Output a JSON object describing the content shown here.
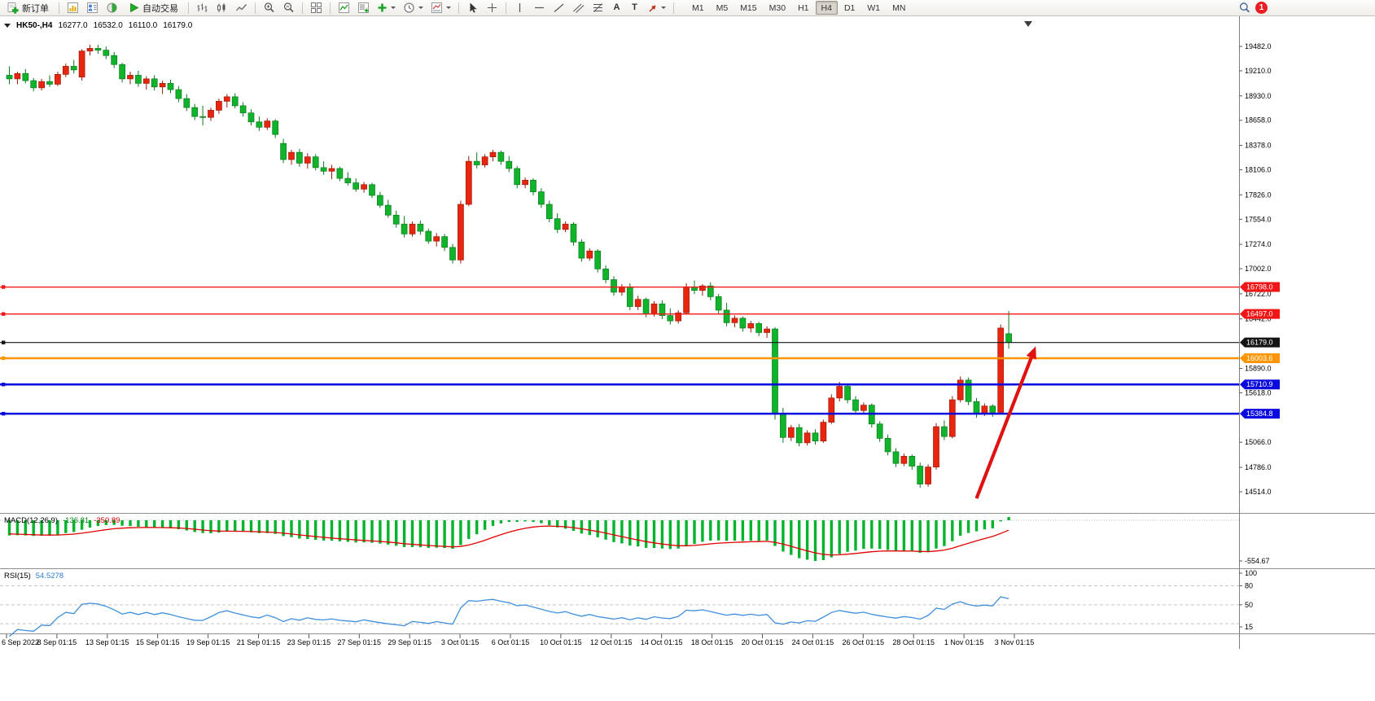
{
  "toolbar": {
    "new_order_label": "新订单",
    "auto_trading_label": "自动交易",
    "text_tool_label": "A",
    "label_tool_label": "T",
    "timeframes": [
      "M1",
      "M5",
      "M15",
      "M30",
      "H1",
      "H4",
      "D1",
      "W1",
      "MN"
    ],
    "active_timeframe": "H4",
    "notification_badge": "1"
  },
  "chart_header": {
    "symbol_period": "HK50-,H4",
    "open": "16277.0",
    "high": "16532.0",
    "low": "16110.0",
    "close": "16179.0"
  },
  "macd_panel": {
    "label": "MACD(12,26,9)",
    "main_value": "-136.81",
    "signal_value": "-350.89",
    "min_label": "-554.67"
  },
  "rsi_panel": {
    "label": "RSI(15)",
    "value": "54.5278",
    "axis_labels": [
      "100",
      "80",
      "50",
      "15"
    ],
    "levels": [
      80,
      50,
      20
    ]
  },
  "price_axis": {
    "labels": [
      "19482.0",
      "19210.0",
      "18930.0",
      "18658.0",
      "18378.0",
      "18106.0",
      "17826.0",
      "17554.0",
      "17274.0",
      "17002.0",
      "16722.0",
      "16442.0",
      "15890.0",
      "15618.0",
      "15066.0",
      "14786.0",
      "14514.0"
    ]
  },
  "time_axis": {
    "labels": [
      "6 Sep 2022",
      "8 Sep 01:15",
      "13 Sep 01:15",
      "15 Sep 01:15",
      "19 Sep 01:15",
      "21 Sep 01:15",
      "23 Sep 01:15",
      "27 Sep 01:15",
      "29 Sep 01:15",
      "3 Oct 01:15",
      "6 Oct 01:15",
      "10 Oct 01:15",
      "12 Oct 01:15",
      "14 Oct 01:15",
      "18 Oct 01:15",
      "20 Oct 01:15",
      "24 Oct 01:15",
      "26 Oct 01:15",
      "28 Oct 01:15",
      "1 Nov 01:15",
      "3 Nov 01:15"
    ]
  },
  "chart_data": {
    "type": "candlestick",
    "symbol": "HK50-",
    "period": "H4",
    "ohlc_current": {
      "open": 16277.0,
      "high": 16532.0,
      "low": 16110.0,
      "close": 16179.0
    },
    "up_color": "#e8250f",
    "down_color": "#0fb42a",
    "axis_top": 19482.0,
    "axis_bottom": 14514.0,
    "candles": [
      [
        19160,
        19260,
        19060,
        19120
      ],
      [
        19120,
        19200,
        19060,
        19180
      ],
      [
        19180,
        19230,
        19070,
        19100
      ],
      [
        19100,
        19130,
        18980,
        19020
      ],
      [
        19020,
        19120,
        18990,
        19090
      ],
      [
        19090,
        19160,
        19030,
        19060
      ],
      [
        19060,
        19200,
        19040,
        19170
      ],
      [
        19170,
        19290,
        19140,
        19260
      ],
      [
        19260,
        19330,
        19180,
        19220
      ],
      [
        19140,
        19450,
        19100,
        19430
      ],
      [
        19430,
        19500,
        19380,
        19460
      ],
      [
        19460,
        19500,
        19400,
        19440
      ],
      [
        19440,
        19480,
        19340,
        19380
      ],
      [
        19380,
        19420,
        19240,
        19280
      ],
      [
        19280,
        19300,
        19080,
        19120
      ],
      [
        19120,
        19200,
        19060,
        19160
      ],
      [
        19160,
        19210,
        19030,
        19070
      ],
      [
        19070,
        19150,
        19000,
        19120
      ],
      [
        19120,
        19160,
        18990,
        19030
      ],
      [
        19030,
        19100,
        18950,
        19070
      ],
      [
        19070,
        19110,
        18960,
        19000
      ],
      [
        19000,
        19040,
        18860,
        18900
      ],
      [
        18900,
        18950,
        18760,
        18800
      ],
      [
        18800,
        18840,
        18660,
        18700
      ],
      [
        18700,
        18820,
        18600,
        18690
      ],
      [
        18690,
        18800,
        18650,
        18770
      ],
      [
        18770,
        18900,
        18730,
        18870
      ],
      [
        18870,
        18950,
        18800,
        18920
      ],
      [
        18920,
        18960,
        18790,
        18820
      ],
      [
        18820,
        18860,
        18700,
        18740
      ],
      [
        18740,
        18780,
        18600,
        18640
      ],
      [
        18640,
        18700,
        18540,
        18580
      ],
      [
        18580,
        18680,
        18550,
        18650
      ],
      [
        18650,
        18670,
        18460,
        18500
      ],
      [
        18400,
        18450,
        18180,
        18220
      ],
      [
        18220,
        18330,
        18160,
        18300
      ],
      [
        18300,
        18340,
        18140,
        18180
      ],
      [
        18180,
        18290,
        18120,
        18250
      ],
      [
        18250,
        18280,
        18100,
        18130
      ],
      [
        18130,
        18200,
        18050,
        18090
      ],
      [
        18090,
        18160,
        18000,
        18120
      ],
      [
        18120,
        18140,
        17980,
        18010
      ],
      [
        18010,
        18080,
        17930,
        17960
      ],
      [
        17960,
        18010,
        17860,
        17890
      ],
      [
        17890,
        17970,
        17850,
        17940
      ],
      [
        17940,
        17960,
        17790,
        17820
      ],
      [
        17820,
        17860,
        17680,
        17710
      ],
      [
        17710,
        17770,
        17570,
        17600
      ],
      [
        17600,
        17650,
        17460,
        17500
      ],
      [
        17500,
        17590,
        17350,
        17390
      ],
      [
        17390,
        17530,
        17360,
        17500
      ],
      [
        17500,
        17540,
        17380,
        17420
      ],
      [
        17420,
        17450,
        17280,
        17310
      ],
      [
        17310,
        17400,
        17250,
        17360
      ],
      [
        17360,
        17390,
        17200,
        17240
      ],
      [
        17240,
        17280,
        17060,
        17100
      ],
      [
        17100,
        17760,
        17060,
        17720
      ],
      [
        17720,
        18260,
        17700,
        18200
      ],
      [
        18200,
        18300,
        18120,
        18160
      ],
      [
        18160,
        18280,
        18130,
        18250
      ],
      [
        18250,
        18330,
        18200,
        18300
      ],
      [
        18300,
        18320,
        18160,
        18200
      ],
      [
        18200,
        18260,
        18080,
        18120
      ],
      [
        18120,
        18150,
        17900,
        17940
      ],
      [
        17940,
        18020,
        17900,
        17990
      ],
      [
        17990,
        18010,
        17820,
        17860
      ],
      [
        17860,
        17900,
        17680,
        17720
      ],
      [
        17720,
        17760,
        17520,
        17560
      ],
      [
        17560,
        17620,
        17400,
        17440
      ],
      [
        17440,
        17530,
        17410,
        17500
      ],
      [
        17500,
        17520,
        17260,
        17300
      ],
      [
        17300,
        17330,
        17080,
        17120
      ],
      [
        17120,
        17230,
        17090,
        17200
      ],
      [
        17200,
        17220,
        16960,
        17000
      ],
      [
        17000,
        17040,
        16840,
        16880
      ],
      [
        16880,
        16920,
        16700,
        16740
      ],
      [
        16740,
        16830,
        16700,
        16800
      ],
      [
        16800,
        16840,
        16540,
        16580
      ],
      [
        16580,
        16700,
        16540,
        16660
      ],
      [
        16660,
        16680,
        16460,
        16500
      ],
      [
        16500,
        16640,
        16470,
        16610
      ],
      [
        16610,
        16650,
        16440,
        16480
      ],
      [
        16480,
        16560,
        16380,
        16420
      ],
      [
        16420,
        16540,
        16390,
        16510
      ],
      [
        16510,
        16840,
        16490,
        16800
      ],
      [
        16800,
        16870,
        16720,
        16760
      ],
      [
        16760,
        16830,
        16700,
        16810
      ],
      [
        16810,
        16850,
        16650,
        16690
      ],
      [
        16690,
        16720,
        16500,
        16540
      ],
      [
        16540,
        16620,
        16360,
        16400
      ],
      [
        16400,
        16480,
        16350,
        16450
      ],
      [
        16450,
        16470,
        16300,
        16340
      ],
      [
        16340,
        16420,
        16290,
        16390
      ],
      [
        16390,
        16410,
        16250,
        16290
      ],
      [
        16290,
        16360,
        16230,
        16330
      ],
      [
        16330,
        16350,
        15320,
        15380
      ],
      [
        15380,
        15450,
        15060,
        15120
      ],
      [
        15120,
        15260,
        15080,
        15230
      ],
      [
        15230,
        15270,
        15020,
        15060
      ],
      [
        15060,
        15200,
        15030,
        15170
      ],
      [
        15170,
        15210,
        15040,
        15080
      ],
      [
        15080,
        15320,
        15060,
        15290
      ],
      [
        15290,
        15600,
        15270,
        15560
      ],
      [
        15560,
        15740,
        15520,
        15690
      ],
      [
        15690,
        15720,
        15500,
        15540
      ],
      [
        15540,
        15580,
        15380,
        15420
      ],
      [
        15420,
        15510,
        15390,
        15480
      ],
      [
        15480,
        15500,
        15230,
        15270
      ],
      [
        15270,
        15300,
        15070,
        15110
      ],
      [
        15110,
        15150,
        14920,
        14960
      ],
      [
        14960,
        15000,
        14790,
        14830
      ],
      [
        14830,
        14940,
        14800,
        14910
      ],
      [
        14910,
        14930,
        14760,
        14800
      ],
      [
        14800,
        14840,
        14560,
        14600
      ],
      [
        14600,
        14820,
        14570,
        14790
      ],
      [
        14790,
        15280,
        14760,
        15240
      ],
      [
        15240,
        15310,
        15090,
        15130
      ],
      [
        15130,
        15580,
        15110,
        15540
      ],
      [
        15540,
        15800,
        15510,
        15760
      ],
      [
        15760,
        15790,
        15480,
        15520
      ],
      [
        15520,
        15560,
        15340,
        15390
      ],
      [
        15390,
        15500,
        15360,
        15470
      ],
      [
        15470,
        15490,
        15350,
        15400
      ],
      [
        15400,
        16380,
        15380,
        16340
      ],
      [
        16277,
        16532,
        16110,
        16179
      ]
    ],
    "hlines": [
      {
        "price": 16798.0,
        "color": "#f21515",
        "width": 1.4,
        "label": "16798.0"
      },
      {
        "price": 16497.0,
        "color": "#f21515",
        "width": 1.4,
        "label": "16497.0"
      },
      {
        "price": 16179.0,
        "color": "#141414",
        "width": 1.2,
        "label": "16179.0"
      },
      {
        "price": 16003.6,
        "color": "#ff9500",
        "width": 2.6,
        "label": "16003.6"
      },
      {
        "price": 15710.9,
        "color": "#0a0adf",
        "width": 2.6,
        "label": "15710.9"
      },
      {
        "price": 15384.8,
        "color": "#0a0adf",
        "width": 2.6,
        "label": "15384.8"
      }
    ],
    "annotations": [
      {
        "type": "arrow",
        "from_bar": 120.0,
        "from_price": 14440,
        "to_bar": 126.8,
        "to_price": 16010,
        "color": "#e01111"
      }
    ],
    "indicators": [
      {
        "type": "MACD",
        "fast": 12,
        "slow": 26,
        "signal": 9,
        "histogram_color": "#00b32c",
        "signal_color": "#e00000"
      },
      {
        "type": "RSI",
        "period": 15,
        "line_color": "#3f8fdc"
      }
    ],
    "indicator_seed": {
      "start": 20150,
      "step": -33,
      "wave": 16,
      "count": 30
    }
  }
}
